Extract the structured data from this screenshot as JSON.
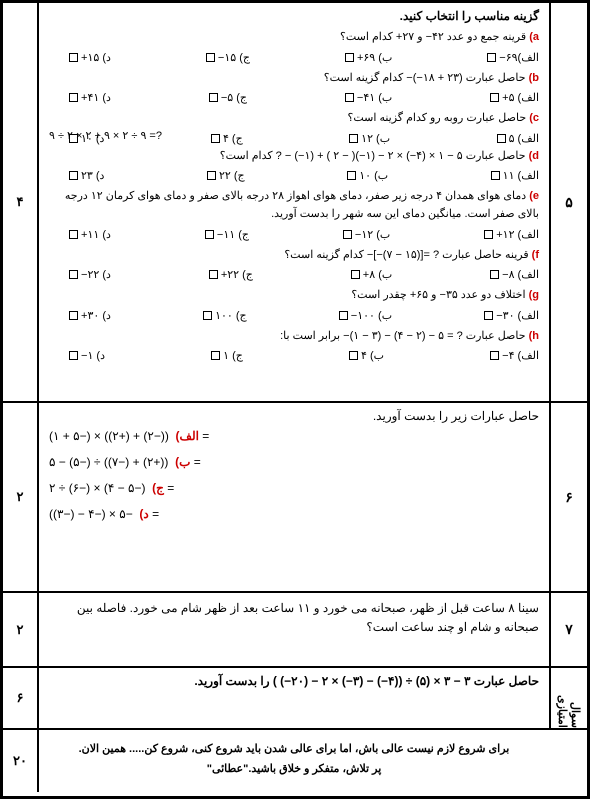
{
  "q5": {
    "num": "۵",
    "score": "۴",
    "header": "گزینه مناسب را انتخاب کنید.",
    "a": {
      "lbl": "a)",
      "t": "قرینه جمع دو عدد  ۴۲−  و  ۲۷+ کدام است؟",
      "o": [
        "الف)۶۹−",
        "ب) ۶۹+",
        "ج) ۱۵−",
        "د) ۱۵+"
      ]
    },
    "b": {
      "lbl": "b)",
      "t": "حاصل عبارت  (۲۳ + ۱۸−)− کدام گزینه است؟",
      "o": [
        "الف) ۵+",
        "ب) ۴۱−",
        "ج) ۵−",
        "د) ۴۱+"
      ]
    },
    "c": {
      "lbl": "c)",
      "t": "حاصل عبارت روبه رو کدام گزینه است؟",
      "e": "۹ ÷ ۲ × ۲ + ۹ × ۲ ÷ ۹ =?",
      "o": [
        "الف) ۵",
        "ب) ۱۲",
        "ج) ۴",
        "د) ۱۰"
      ]
    },
    "d": {
      "lbl": "d)",
      "t": "حاصل عبارت ۵ − ۱ × (۴−) × ۲ − (۱−)( − ۲ ) + (۱−) − ? کدام است؟",
      "o": [
        "الف) ۱۱",
        "ب) ۱۰",
        "ج) ۲۲",
        "د) ۲۳"
      ]
    },
    "e": {
      "lbl": "e)",
      "t": "دمای هوای همدان ۴ درجه زیر صفر، دمای هوای اهواز ۲۸ درجه بالای صفر و دمای هوای کرمان ۱۲ درجه بالای صفر است. میانگین دمای این سه شهر را بدست آورید.",
      "o": [
        "الف) ۱۲+",
        "ب) ۱۲−",
        "ج) ۱۱−",
        "د) ۱۱+"
      ]
    },
    "f": {
      "lbl": "f)",
      "t": "قرینه حاصل عبارت  ? =[(۱۵ − ۷)−]− کدام گزینه است؟",
      "o": [
        "الف) ۸−",
        "ب) ۸+",
        "ج) ۲۲+",
        "د) ۲۲−"
      ]
    },
    "g": {
      "lbl": "g)",
      "t": "اختلاف دو عدد  ۳۵−  و ۶۵+ چقدر است؟",
      "o": [
        "الف) ۳۰−",
        "ب) ۱۰۰−",
        "ج) ۱۰۰",
        "د) ۳۰+"
      ]
    },
    "h": {
      "lbl": "h)",
      "t": "حاصل عبارت  ? = ۵ − (۲ − ۴) − (۳ − ۱)− برابر است با:",
      "o": [
        "الف) ۴−",
        "ب) ۴",
        "ج) ۱",
        "د) ۱−"
      ]
    }
  },
  "q6": {
    "num": "۶",
    "score": "۲",
    "header": "حاصل عبارات زیر را بدست آورید.",
    "a": {
      "lbl": "الف)",
      "e": "((−۲) + (+۲)) × (−۵ + ۱)  ="
    },
    "b": {
      "lbl": "ب)",
      "e": "((+۲) + (−۷)) ÷ (−۵) − ۵ ="
    },
    "c": {
      "lbl": "ج)",
      "e": "(−۵ − ۴) × (−۶) ÷ ۲ ="
    },
    "d": {
      "lbl": "د)",
      "e": "−۵ × (−۴ − (−۳)) ="
    }
  },
  "q7": {
    "num": "۷",
    "score": "۲",
    "t": "سینا ۸ ساعت قبل از ظهر، صبحانه می خورد و ۱۱ ساعت بعد از ظهر شام می خورد. فاصله بین صبحانه و شام او چند ساعت است؟"
  },
  "q8": {
    "num": "سوال امتیازی",
    "score": "۶",
    "t": "حاصل عبارت  ۳ − ۳ × (۵) ÷ ((۴−) − (۳−) × ۲ − (۲۰−) )  را بدست آورید."
  },
  "ft": {
    "score": "۲۰",
    "l1": "برای شروع لازم نیست عالی باش، اما برای عالی شدن باید شروع کنی، شروع کن..... همین الان.",
    "l2": "پر تلاش، متفکر و خلاق باشید.\"عطائی\""
  }
}
